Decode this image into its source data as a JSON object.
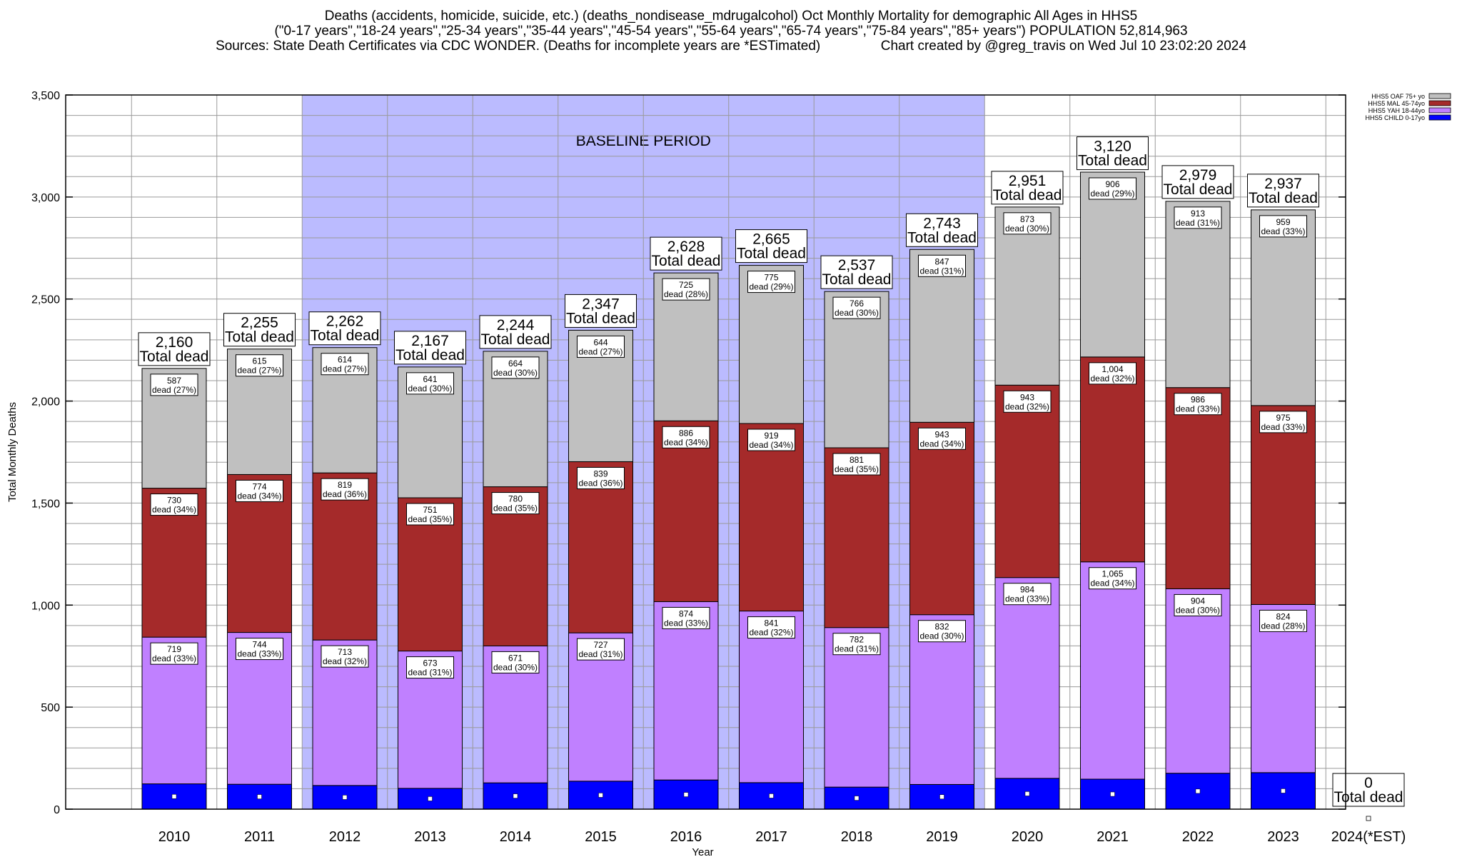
{
  "header": {
    "line1": "Deaths (accidents, homicide, suicide, etc.) (deaths_nondisease_mdrugalcohol) Oct Monthly Mortality for demographic All Ages in HHS5",
    "line2": "(\"0-17 years\",\"18-24 years\",\"25-34 years\",\"35-44 years\",\"45-54 years\",\"55-64 years\",\"65-74 years\",\"75-84 years\",\"85+ years\") POPULATION 52,814,963",
    "line3": "Sources: State Death Certificates via CDC WONDER. (Deaths for incomplete years are *ESTimated)                Chart created by @greg_travis on Wed Jul 10 23:02:20 2024"
  },
  "baseline_label": "BASELINE PERIOD",
  "total_suffix": "Total dead",
  "colors": {
    "child": "#0000ff",
    "yah": "#c080ff",
    "mal": "#a52a2a",
    "oaf": "#c0c0c0",
    "baseline": "#bbbbff"
  },
  "chart_data": {
    "type": "bar",
    "stacked": true,
    "xlabel": "Year",
    "ylabel": "Total Monthly Deaths",
    "ylim": [
      0,
      3500
    ],
    "yticks": [
      "0",
      "500",
      "1,000",
      "1,500",
      "2,000",
      "2,500",
      "3,000",
      "3,500"
    ],
    "grid": true,
    "legend_position": "top-right",
    "baseline_period": [
      "2012",
      "2019"
    ],
    "categories": [
      "2010",
      "2011",
      "2012",
      "2013",
      "2014",
      "2015",
      "2016",
      "2017",
      "2018",
      "2019",
      "2020",
      "2021",
      "2022",
      "2023",
      "2024(*EST)"
    ],
    "totals": [
      2160,
      2255,
      2262,
      2167,
      2244,
      2347,
      2628,
      2665,
      2537,
      2743,
      2951,
      3120,
      2979,
      2937,
      0
    ],
    "total_labels": [
      "2,160",
      "2,255",
      "2,262",
      "2,167",
      "2,244",
      "2,347",
      "2,628",
      "2,665",
      "2,537",
      "2,743",
      "2,951",
      "3,120",
      "2,979",
      "2,937",
      "0"
    ],
    "series": [
      {
        "name": "HHS5 CHILD 0-17yo",
        "key": "child",
        "values": [
          124,
          122,
          116,
          102,
          129,
          137,
          143,
          130,
          108,
          121,
          151,
          147,
          176,
          179,
          0
        ]
      },
      {
        "name": "HHS5 YAH 18-44yo",
        "key": "yah",
        "values": [
          719,
          744,
          713,
          673,
          671,
          727,
          874,
          841,
          782,
          832,
          984,
          1065,
          904,
          824,
          0
        ],
        "labels": [
          "719\ndead (33%)",
          "744\ndead (33%)",
          "713\ndead (32%)",
          "673\ndead (31%)",
          "671\ndead (30%)",
          "727\ndead (31%)",
          "874\ndead (33%)",
          "841\ndead (32%)",
          "782\ndead (31%)",
          "832\ndead (30%)",
          "984\ndead (33%)",
          "1,065\ndead (34%)",
          "904\ndead (30%)",
          "824\ndead (28%)",
          ""
        ]
      },
      {
        "name": "HHS5 MAL 45-74yo",
        "key": "mal",
        "values": [
          730,
          774,
          819,
          751,
          780,
          839,
          886,
          919,
          881,
          943,
          943,
          1004,
          986,
          975,
          0
        ],
        "labels": [
          "730\ndead (34%)",
          "774\ndead (34%)",
          "819\ndead (36%)",
          "751\ndead (35%)",
          "780\ndead (35%)",
          "839\ndead (36%)",
          "886\ndead (34%)",
          "919\ndead (34%)",
          "881\ndead (35%)",
          "943\ndead (34%)",
          "943\ndead (32%)",
          "1,004\ndead (32%)",
          "986\ndead (33%)",
          "975\ndead (33%)",
          ""
        ]
      },
      {
        "name": "HHS5 OAF 75+ yo",
        "key": "oaf",
        "values": [
          587,
          615,
          614,
          641,
          664,
          644,
          725,
          775,
          766,
          847,
          873,
          906,
          913,
          959,
          0
        ],
        "labels": [
          "587\ndead (27%)",
          "615\ndead (27%)",
          "614\ndead (27%)",
          "641\ndead (30%)",
          "664\ndead (30%)",
          "644\ndead (27%)",
          "725\ndead (28%)",
          "775\ndead (29%)",
          "766\ndead (30%)",
          "847\ndead (31%)",
          "873\ndead (30%)",
          "906\ndead (29%)",
          "913\ndead (31%)",
          "959\ndead (33%)",
          ""
        ]
      }
    ]
  }
}
